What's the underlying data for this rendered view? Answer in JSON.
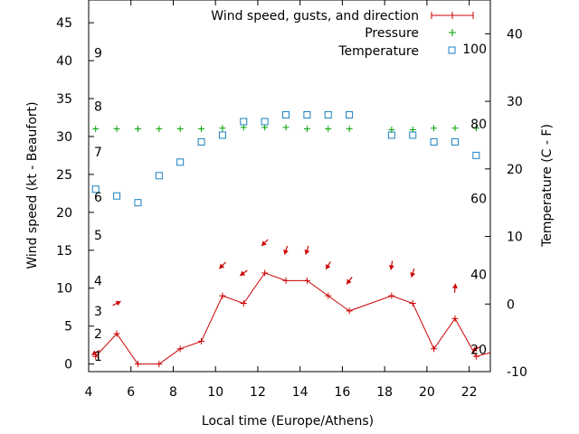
{
  "chart_data": {
    "type": "line",
    "title": "",
    "xlabel": "Local time (Europe/Athens)",
    "ylabel_left": "Wind speed (kt - Beaufort)",
    "ylabel_right": "Temperature (C - F)",
    "xlim": [
      4,
      23
    ],
    "ylim_left": [
      -1,
      48
    ],
    "ylim_right": [
      -10,
      45
    ],
    "x_ticks": [
      4,
      6,
      8,
      10,
      12,
      14,
      16,
      18,
      20,
      22
    ],
    "y_ticks_left": [
      0,
      5,
      10,
      15,
      20,
      25,
      30,
      35,
      40,
      45
    ],
    "y_ticks_right": [
      -10,
      0,
      10,
      20,
      30,
      40
    ],
    "beaufort_labels": [
      {
        "label": "1",
        "kt": 1
      },
      {
        "label": "2",
        "kt": 4
      },
      {
        "label": "3",
        "kt": 7
      },
      {
        "label": "4",
        "kt": 11
      },
      {
        "label": "5",
        "kt": 17
      },
      {
        "label": "6",
        "kt": 22
      },
      {
        "label": "7",
        "kt": 28
      },
      {
        "label": "8",
        "kt": 34
      },
      {
        "label": "9",
        "kt": 41
      }
    ],
    "fahrenheit_labels": [
      {
        "label": "20",
        "c": -6.7
      },
      {
        "label": "40",
        "c": 4.4
      },
      {
        "label": "60",
        "c": 15.6
      },
      {
        "label": "80",
        "c": 26.7
      },
      {
        "label": "100",
        "c": 37.8
      }
    ],
    "legend_position": "top-right",
    "series": [
      {
        "name": "Wind speed, gusts, and direction",
        "color": "#cc0000",
        "axis": "left",
        "x": [
          4.33,
          5.33,
          6.33,
          7.33,
          8.33,
          9.33,
          10.33,
          11.33,
          12.33,
          13.33,
          14.33,
          15.33,
          16.33,
          18.33,
          19.33,
          20.33,
          21.33,
          22.33,
          23
        ],
        "y": [
          1,
          4,
          0,
          0,
          2,
          3,
          9,
          8,
          12,
          11,
          11,
          9,
          7,
          9,
          8,
          2,
          6,
          1,
          1.5
        ]
      },
      {
        "name": "Pressure",
        "color": "#00a000",
        "axis": "left",
        "x": [
          4.33,
          5.33,
          6.33,
          7.33,
          8.33,
          9.33,
          10.33,
          11.33,
          12.33,
          13.33,
          14.33,
          15.33,
          16.33,
          18.33,
          19.33,
          20.33,
          21.33,
          22.33
        ],
        "y": [
          31,
          31,
          31,
          31,
          31,
          31,
          31.1,
          31.2,
          31.2,
          31.2,
          31,
          31,
          31,
          30.9,
          30.9,
          31.1,
          31.1,
          31.1
        ]
      },
      {
        "name": "Temperature",
        "color": "#1a80c0",
        "axis": "right",
        "x": [
          4.33,
          5.33,
          6.33,
          7.33,
          8.33,
          9.33,
          10.33,
          11.33,
          12.33,
          13.33,
          14.33,
          15.33,
          16.33,
          18.33,
          19.33,
          20.33,
          21.33,
          22.33
        ],
        "y": [
          17,
          16,
          15,
          19,
          21,
          24,
          25,
          27,
          27,
          28,
          28,
          28,
          28,
          25,
          25,
          24,
          24,
          22
        ]
      }
    ],
    "wind_direction_arrows": [
      {
        "x": 4.33,
        "kt": 1.5,
        "dx": -1,
        "dy": 0.6
      },
      {
        "x": 5.33,
        "kt": 8,
        "dx": 1,
        "dy": -0.5
      },
      {
        "x": 10.33,
        "kt": 13,
        "dx": -0.7,
        "dy": 0.7
      },
      {
        "x": 11.33,
        "kt": 12,
        "dx": -0.8,
        "dy": 0.6
      },
      {
        "x": 12.33,
        "kt": 16,
        "dx": -0.7,
        "dy": 0.7
      },
      {
        "x": 13.33,
        "kt": 15,
        "dx": -0.3,
        "dy": 0.95
      },
      {
        "x": 14.33,
        "kt": 15,
        "dx": -0.3,
        "dy": 0.95
      },
      {
        "x": 15.33,
        "kt": 13,
        "dx": -0.5,
        "dy": 0.85
      },
      {
        "x": 16.33,
        "kt": 11,
        "dx": -0.6,
        "dy": 0.8
      },
      {
        "x": 18.33,
        "kt": 13,
        "dx": -0.15,
        "dy": 1
      },
      {
        "x": 19.33,
        "kt": 12,
        "dx": -0.3,
        "dy": 0.95
      },
      {
        "x": 21.33,
        "kt": 10,
        "dx": 0.1,
        "dy": -1
      },
      {
        "x": 22.33,
        "kt": 2,
        "dx": -1,
        "dy": 0.5
      }
    ]
  }
}
